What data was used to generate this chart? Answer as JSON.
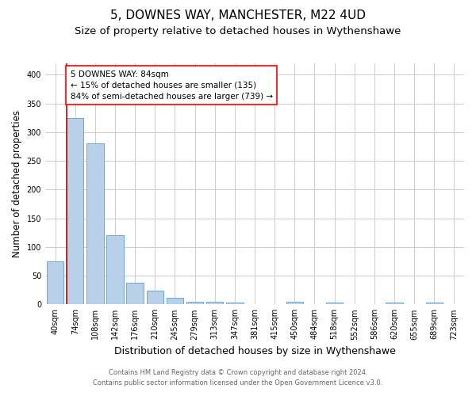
{
  "title": "5, DOWNES WAY, MANCHESTER, M22 4UD",
  "subtitle": "Size of property relative to detached houses in Wythenshawe",
  "xlabel": "Distribution of detached houses by size in Wythenshawe",
  "ylabel": "Number of detached properties",
  "footnote1": "Contains HM Land Registry data © Crown copyright and database right 2024.",
  "footnote2": "Contains public sector information licensed under the Open Government Licence v3.0.",
  "bar_labels": [
    "40sqm",
    "74sqm",
    "108sqm",
    "142sqm",
    "176sqm",
    "210sqm",
    "245sqm",
    "279sqm",
    "313sqm",
    "347sqm",
    "381sqm",
    "415sqm",
    "450sqm",
    "484sqm",
    "518sqm",
    "552sqm",
    "586sqm",
    "620sqm",
    "655sqm",
    "689sqm",
    "723sqm"
  ],
  "bar_values": [
    75,
    325,
    280,
    120,
    37,
    24,
    12,
    4,
    4,
    3,
    0,
    0,
    5,
    0,
    3,
    0,
    0,
    3,
    0,
    3,
    0
  ],
  "bar_color": "#b8d0e8",
  "bar_edge_color": "#6aaad4",
  "red_line_x": 1,
  "annotation_line1": "5 DOWNES WAY: 84sqm",
  "annotation_line2": "← 15% of detached houses are smaller (135)",
  "annotation_line3": "84% of semi-detached houses are larger (739) →",
  "annotation_box_color": "white",
  "annotation_edge_color": "red",
  "red_line_color": "#cc0000",
  "ylim": [
    0,
    420
  ],
  "yticks": [
    0,
    50,
    100,
    150,
    200,
    250,
    300,
    350,
    400
  ],
  "background_color": "white",
  "grid_color": "#cccccc",
  "title_fontsize": 11,
  "subtitle_fontsize": 9.5,
  "xlabel_fontsize": 9,
  "ylabel_fontsize": 8.5,
  "tick_fontsize": 7,
  "annotation_fontsize": 7.5,
  "footnote_fontsize": 6
}
